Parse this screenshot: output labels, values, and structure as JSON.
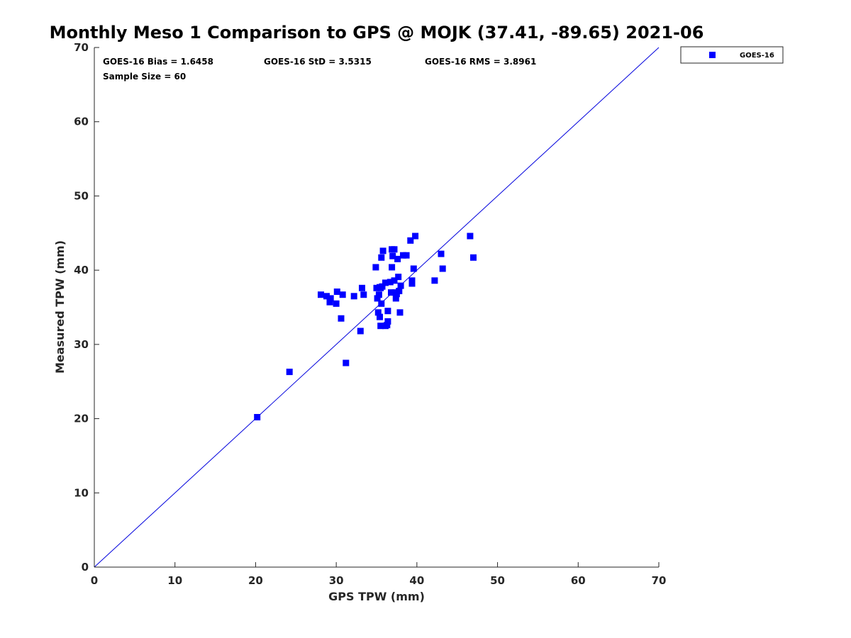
{
  "chart_data": {
    "type": "scatter",
    "title": "Monthly Meso 1 Comparison to GPS @ MOJK (37.41, -89.65) 2021-06",
    "xlabel": "GPS TPW (mm)",
    "ylabel": "Measured TPW (mm)",
    "xlim": [
      0,
      70
    ],
    "ylim": [
      0,
      70
    ],
    "xticks": [
      0,
      10,
      20,
      30,
      40,
      50,
      60,
      70
    ],
    "yticks": [
      0,
      10,
      20,
      30,
      40,
      50,
      60,
      70
    ],
    "grid": false,
    "legend_position": "outside-top-right",
    "reference_line": {
      "type": "1:1",
      "from": [
        0,
        0
      ],
      "to": [
        70,
        70
      ],
      "color": "#0000dd"
    },
    "stats": {
      "bias": "GOES-16 Bias = 1.6458",
      "std": "GOES-16 StD = 3.5315",
      "rms": "GOES-16 RMS = 3.8961",
      "sample": "Sample Size = 60"
    },
    "series": [
      {
        "name": "GOES-16",
        "color": "#0000ff",
        "marker": "square",
        "points": [
          [
            20.2,
            20.2
          ],
          [
            24.2,
            26.3
          ],
          [
            28.1,
            36.7
          ],
          [
            28.8,
            36.5
          ],
          [
            29.2,
            35.7
          ],
          [
            29.3,
            36.2
          ],
          [
            30.0,
            35.5
          ],
          [
            30.1,
            37.1
          ],
          [
            30.6,
            33.5
          ],
          [
            30.8,
            36.7
          ],
          [
            31.2,
            27.5
          ],
          [
            32.2,
            36.5
          ],
          [
            33.0,
            31.8
          ],
          [
            33.2,
            37.6
          ],
          [
            33.4,
            36.7
          ],
          [
            34.9,
            40.4
          ],
          [
            35.0,
            37.6
          ],
          [
            35.1,
            36.2
          ],
          [
            35.2,
            34.3
          ],
          [
            35.3,
            36.7
          ],
          [
            35.4,
            33.7
          ],
          [
            35.4,
            37.7
          ],
          [
            35.5,
            32.5
          ],
          [
            35.6,
            35.5
          ],
          [
            35.6,
            41.7
          ],
          [
            35.7,
            37.8
          ],
          [
            35.8,
            42.6
          ],
          [
            36.1,
            32.5
          ],
          [
            36.1,
            38.3
          ],
          [
            36.3,
            32.6
          ],
          [
            36.4,
            34.5
          ],
          [
            36.4,
            33.1
          ],
          [
            36.7,
            38.4
          ],
          [
            36.8,
            37.0
          ],
          [
            36.9,
            42.8
          ],
          [
            36.9,
            40.4
          ],
          [
            37.0,
            41.9
          ],
          [
            37.2,
            42.8
          ],
          [
            37.2,
            38.6
          ],
          [
            37.3,
            37.0
          ],
          [
            37.4,
            36.2
          ],
          [
            37.5,
            36.8
          ],
          [
            37.6,
            41.5
          ],
          [
            37.7,
            39.1
          ],
          [
            37.8,
            37.2
          ],
          [
            37.9,
            34.3
          ],
          [
            38.0,
            37.9
          ],
          [
            38.3,
            42.0
          ],
          [
            38.7,
            42.0
          ],
          [
            39.2,
            44.0
          ],
          [
            39.4,
            38.6
          ],
          [
            39.4,
            38.2
          ],
          [
            39.6,
            40.2
          ],
          [
            39.8,
            44.6
          ],
          [
            42.2,
            38.6
          ],
          [
            43.0,
            42.2
          ],
          [
            43.2,
            40.2
          ],
          [
            46.6,
            44.6
          ],
          [
            47.0,
            41.7
          ],
          [
            35.5,
            37.6
          ]
        ]
      }
    ]
  }
}
